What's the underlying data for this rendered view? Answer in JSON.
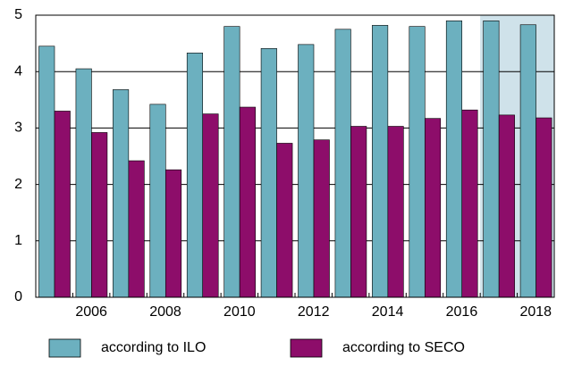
{
  "chart_data": {
    "type": "bar",
    "categories": [
      null,
      "2006",
      null,
      "2008",
      null,
      "2010",
      null,
      "2012",
      null,
      "2014",
      null,
      "2016",
      null,
      "2018"
    ],
    "series": [
      {
        "name": "according to ILO",
        "color": "#6cb0bf",
        "values": [
          4.45,
          4.05,
          3.68,
          3.42,
          4.33,
          4.8,
          4.41,
          4.48,
          4.75,
          4.82,
          4.8,
          4.9,
          4.9,
          4.83
        ]
      },
      {
        "name": "according to SECO",
        "color": "#8d0d6a",
        "values": [
          3.3,
          2.92,
          2.42,
          2.26,
          3.25,
          3.37,
          2.73,
          2.79,
          3.03,
          3.03,
          3.17,
          3.32,
          3.23,
          3.18
        ]
      }
    ],
    "ylim": [
      0,
      5
    ],
    "yticks": [
      0,
      1,
      2,
      3,
      4,
      5
    ],
    "grid": true,
    "highlighted": [
      12,
      13
    ],
    "highlight_color": "#cfe2ea"
  }
}
